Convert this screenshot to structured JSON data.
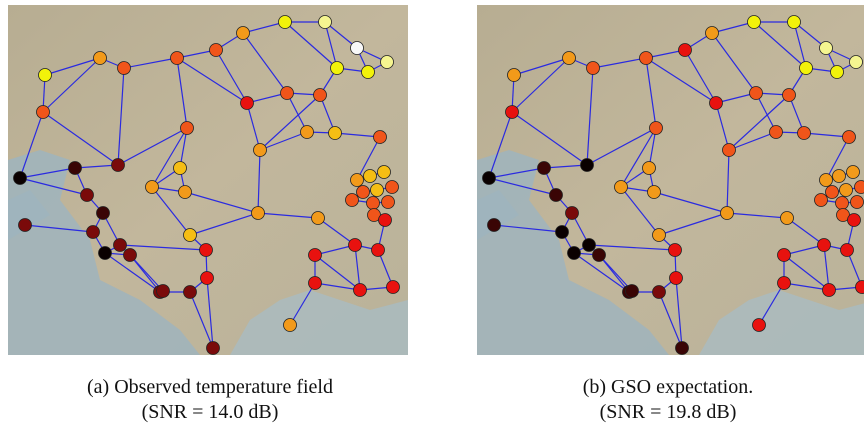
{
  "panels": [
    {
      "caption": "(a) Observed temperature field",
      "snr": "(SNR = 14.0 dB)"
    },
    {
      "caption": "(b) GSO expectation.",
      "snr": "(SNR = 19.8 dB)"
    }
  ]
}
